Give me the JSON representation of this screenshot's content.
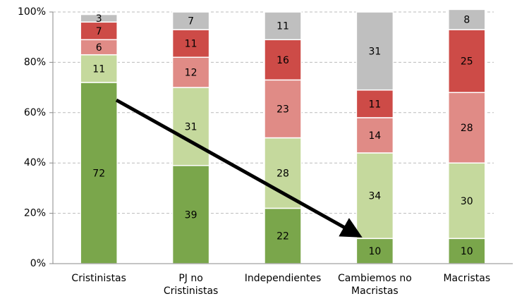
{
  "chart_data": {
    "type": "stacked_bar",
    "categories": [
      "Cristinistas",
      "PJ no\nCristinistas",
      "Independientes",
      "Cambiemos no\nMacristas",
      "Macristas"
    ],
    "series": [
      {
        "color": "#7aa64b",
        "values": [
          72,
          39,
          22,
          10,
          10
        ]
      },
      {
        "color": "#c5d99d",
        "values": [
          11,
          31,
          28,
          34,
          30
        ]
      },
      {
        "color": "#e08b86",
        "values": [
          6,
          12,
          23,
          14,
          28
        ]
      },
      {
        "color": "#cd4b47",
        "values": [
          7,
          11,
          16,
          11,
          25
        ]
      },
      {
        "color": "#bfbfbf",
        "values": [
          3,
          7,
          11,
          31,
          8
        ]
      }
    ],
    "ylim": [
      0,
      100
    ],
    "yticks": [
      {
        "value": 0,
        "label": "0%"
      },
      {
        "value": 20,
        "label": "20%"
      },
      {
        "value": 40,
        "label": "40%"
      },
      {
        "value": 60,
        "label": "60%"
      },
      {
        "value": 80,
        "label": "80%"
      },
      {
        "value": 100,
        "label": "100%"
      }
    ],
    "grid": true
  }
}
